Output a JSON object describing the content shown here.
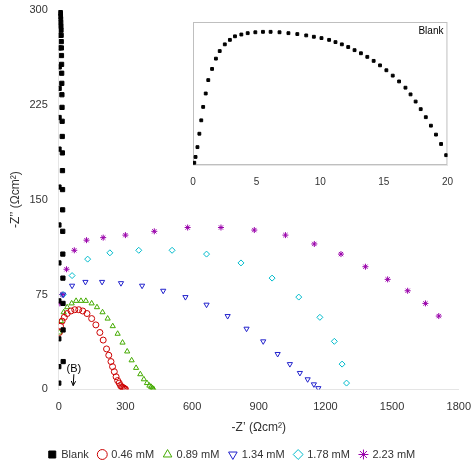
{
  "chart_data": [
    {
      "type": "scatter",
      "xlabel": "-Z’ (Ωcm²)",
      "ylabel": "-Z’’ (Ωcm²)",
      "xlim": [
        0,
        1800
      ],
      "ylim": [
        0,
        300
      ],
      "xticks": [
        0,
        300,
        600,
        900,
        1200,
        1500,
        1800
      ],
      "yticks": [
        0,
        75,
        150,
        225,
        300
      ],
      "grid": false,
      "legend": "bottom",
      "annotations": [
        {
          "text": "(B)",
          "x": 35,
          "y": 12,
          "arrow_x": 65,
          "arrow_y": 3
        }
      ],
      "series": [
        {
          "name": "Blank",
          "color": "#000000",
          "marker": "square",
          "x": [
            0.1,
            0.2,
            0.35,
            0.5,
            0.65,
            0.8,
            1.0,
            1.2,
            1.5,
            1.8,
            2.1,
            2.5,
            2.9,
            3.3,
            3.8,
            4.3,
            4.9,
            5.5,
            6.1,
            6.8,
            7.5,
            8.2,
            8.9,
            9.5,
            10.1,
            10.7,
            11.2,
            11.7,
            12.2,
            12.7,
            13.2,
            13.7,
            14.2,
            14.7,
            15.2,
            15.7,
            16.2,
            16.7,
            17.1,
            17.5,
            17.9,
            18.3,
            18.7,
            19.1,
            19.5,
            19.9
          ],
          "values": [
            5,
            18,
            40,
            70,
            100,
            130,
            160,
            190,
            215,
            238,
            255,
            270,
            280,
            288,
            292,
            295,
            297,
            298,
            298,
            297,
            295,
            293,
            290,
            287,
            284,
            280,
            275,
            270,
            264,
            257,
            250,
            242,
            233,
            223,
            212,
            200,
            187,
            173,
            158,
            142,
            125,
            107,
            88,
            68,
            47,
            22
          ]
        },
        {
          "name": "0.46 mM",
          "color": "#cc0000",
          "marker": "circle",
          "x": [
            3,
            8,
            15,
            25,
            38,
            55,
            72,
            90,
            108,
            127,
            148,
            167,
            185,
            200,
            215,
            225,
            235,
            242,
            250,
            258,
            265,
            272,
            278,
            283,
            288,
            293,
            297,
            300
          ],
          "values": [
            45,
            50,
            54,
            57,
            60,
            62,
            63,
            63,
            62,
            60,
            56,
            51,
            45,
            39,
            32,
            27,
            22,
            18,
            14,
            10,
            7,
            5,
            3,
            2,
            1.5,
            1,
            0.5,
            0.2
          ]
        },
        {
          "name": "0.89 mM",
          "color": "#44aa00",
          "marker": "triangle_up",
          "x": [
            3,
            10,
            22,
            38,
            58,
            78,
            100,
            122,
            148,
            172,
            197,
            220,
            243,
            265,
            287,
            308,
            328,
            348,
            367,
            383,
            397,
            408,
            416,
            422,
            427
          ],
          "values": [
            45,
            54,
            61,
            65,
            68,
            70,
            70,
            70,
            68,
            65,
            61,
            56,
            50,
            44,
            37,
            30,
            23,
            17,
            12,
            8,
            5,
            3,
            2,
            1,
            0.3
          ]
        },
        {
          "name": "1.34 mM",
          "color": "#2222cc",
          "marker": "triangle_down",
          "x": [
            20,
            60,
            120,
            195,
            280,
            375,
            470,
            570,
            665,
            760,
            845,
            920,
            985,
            1040,
            1085,
            1120,
            1148,
            1168
          ],
          "values": [
            75,
            82,
            85,
            85,
            84,
            82,
            78,
            73,
            67,
            58,
            48,
            38,
            28,
            20,
            13,
            8,
            4,
            1
          ]
        },
        {
          "name": "1.78 mM",
          "color": "#00bbcc",
          "marker": "diamond",
          "x": [
            20,
            60,
            130,
            230,
            360,
            510,
            665,
            820,
            960,
            1080,
            1175,
            1240,
            1275,
            1295
          ],
          "values": [
            75,
            90,
            103,
            108,
            110,
            110,
            107,
            100,
            88,
            73,
            57,
            38,
            20,
            5
          ]
        },
        {
          "name": "2.23 mM",
          "color": "#9900aa",
          "marker": "asterisk",
          "x": [
            5,
            15,
            35,
            70,
            125,
            200,
            300,
            430,
            580,
            730,
            880,
            1020,
            1150,
            1270,
            1380,
            1480,
            1570,
            1650,
            1710
          ],
          "values": [
            68,
            75,
            95,
            110,
            118,
            120,
            122,
            125,
            128,
            128,
            126,
            122,
            115,
            107,
            97,
            87,
            78,
            68,
            58
          ]
        }
      ]
    },
    {
      "type": "scatter",
      "xlim": [
        0,
        20
      ],
      "ylim": [
        0,
        320
      ],
      "xticks": [
        0,
        5,
        10,
        15,
        20
      ],
      "grid": false,
      "tick_labels": "x",
      "annotations": [
        {
          "text": "Blank"
        }
      ],
      "series": [
        {
          "color": "#000000",
          "marker": "square",
          "x": [
            0.1,
            0.2,
            0.35,
            0.5,
            0.65,
            0.8,
            1.0,
            1.2,
            1.5,
            1.8,
            2.1,
            2.5,
            2.9,
            3.3,
            3.8,
            4.3,
            4.9,
            5.5,
            6.1,
            6.8,
            7.5,
            8.2,
            8.9,
            9.5,
            10.1,
            10.7,
            11.2,
            11.7,
            12.2,
            12.7,
            13.2,
            13.7,
            14.2,
            14.7,
            15.2,
            15.7,
            16.2,
            16.7,
            17.1,
            17.5,
            17.9,
            18.3,
            18.7,
            19.1,
            19.5,
            19.9
          ],
          "values": [
            5,
            18,
            40,
            70,
            100,
            130,
            160,
            190,
            215,
            238,
            255,
            270,
            280,
            288,
            292,
            295,
            297,
            298,
            298,
            297,
            295,
            293,
            290,
            287,
            284,
            280,
            275,
            270,
            264,
            257,
            250,
            242,
            233,
            223,
            212,
            200,
            187,
            173,
            158,
            142,
            125,
            107,
            88,
            68,
            47,
            22
          ]
        }
      ]
    }
  ]
}
